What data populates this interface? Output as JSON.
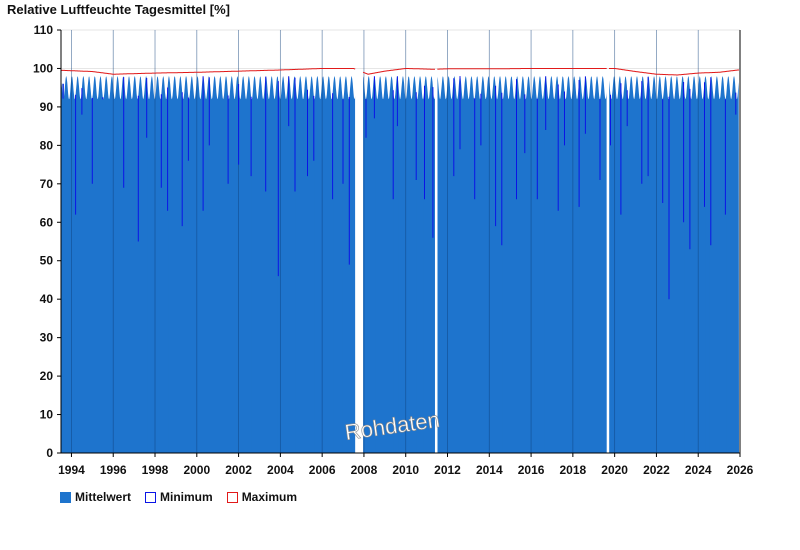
{
  "chart_data": {
    "type": "bar",
    "title": "Relative Luftfeuchte Tagesmittel [%]",
    "ylim": [
      0,
      110
    ],
    "yticks": [
      0,
      10,
      20,
      30,
      40,
      50,
      60,
      70,
      80,
      90,
      100,
      110
    ],
    "xlim": [
      1993.5,
      2026.0
    ],
    "xticks": [
      "1994",
      "1996",
      "1998",
      "2000",
      "2002",
      "2004",
      "2006",
      "2008",
      "2010",
      "2012",
      "2014",
      "2016",
      "2018",
      "2020",
      "2022",
      "2024",
      "2026"
    ],
    "gaps": [
      [
        2007.58,
        2007.95
      ],
      [
        2011.4,
        2011.5
      ],
      [
        2019.62,
        2019.72
      ]
    ],
    "series": [
      {
        "name": "Mittelwert",
        "color": "#1e74cd",
        "x": [
          1993.6,
          1994.2,
          1994.5,
          1995.0,
          1995.5,
          1996.5,
          1997.2,
          1997.6,
          1998.3,
          1998.6,
          1999.3,
          1999.6,
          2000.3,
          2000.6,
          2001.5,
          2002.0,
          2002.6,
          2003.3,
          2003.9,
          2004.4,
          2004.7,
          2005.3,
          2005.6,
          2006.5,
          2007.0,
          2007.3,
          2008.1,
          2008.5,
          2009.4,
          2009.6,
          2010.5,
          2010.9,
          2011.3,
          2012.3,
          2012.6,
          2013.3,
          2013.6,
          2014.3,
          2014.6,
          2015.3,
          2015.7,
          2016.3,
          2016.7,
          2017.3,
          2017.6,
          2018.3,
          2018.6,
          2019.3,
          2019.8,
          2020.3,
          2020.6,
          2021.3,
          2021.6,
          2022.3,
          2022.6,
          2023.3,
          2023.6,
          2024.3,
          2024.6,
          2025.3,
          2025.8
        ],
        "values": [
          96,
          62,
          88,
          70,
          92,
          69,
          55,
          82,
          69,
          63,
          59,
          76,
          63,
          80,
          70,
          75,
          72,
          68,
          46,
          85,
          68,
          72,
          76,
          66,
          70,
          49,
          82,
          87,
          66,
          85,
          71,
          66,
          56,
          72,
          79,
          66,
          80,
          59,
          54,
          66,
          78,
          66,
          84,
          63,
          80,
          64,
          83,
          71,
          80,
          62,
          85,
          70,
          72,
          65,
          40,
          60,
          53,
          64,
          54,
          62,
          88
        ]
      },
      {
        "name": "Minimum",
        "color": "#0a14e6"
      },
      {
        "name": "Maximum",
        "color": "#e11a1a",
        "x": [
          1993.6,
          1995.0,
          1996.0,
          1998.0,
          2000.0,
          2002.0,
          2004.0,
          2006.0,
          2007.5,
          2008.2,
          2009.0,
          2010.0,
          2011.3,
          2012.0,
          2014.0,
          2016.0,
          2018.0,
          2020.0,
          2021.0,
          2022.0,
          2023.0,
          2024.0,
          2025.0,
          2025.9
        ],
        "values": [
          99.5,
          99.2,
          98.5,
          98.8,
          99.0,
          99.3,
          99.6,
          100,
          100,
          98.5,
          99.3,
          100,
          99.8,
          99.9,
          99.9,
          100,
          100,
          100,
          99.2,
          98.5,
          98.3,
          98.8,
          99.0,
          99.6
        ]
      }
    ],
    "annotation": "Rohdaten"
  }
}
